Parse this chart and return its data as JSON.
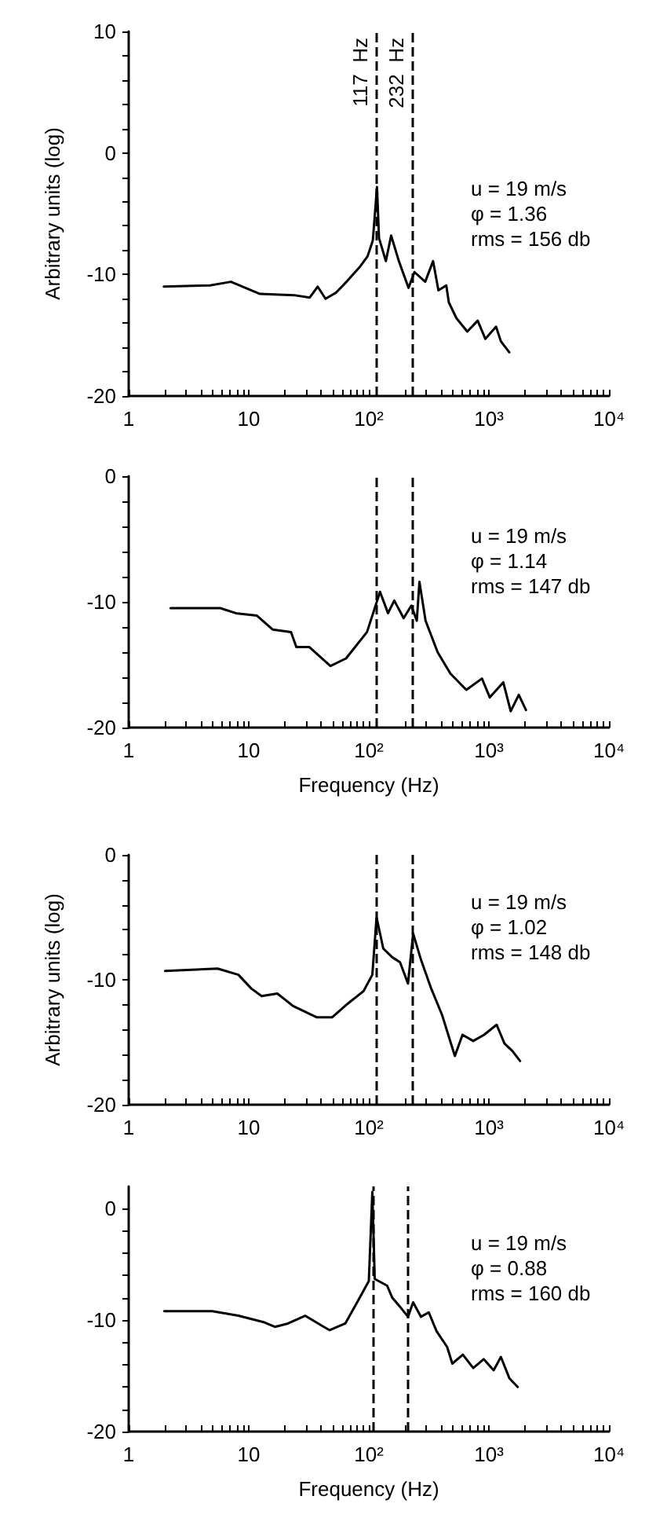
{
  "chart_data": [
    {
      "type": "line",
      "ylabel": "Arbitrary units (log)",
      "log": "x",
      "xlim": [
        1,
        10000
      ],
      "ylim": [
        -20,
        10
      ],
      "xticks": [
        {
          "value": 1,
          "label": "1"
        },
        {
          "value": 2,
          "label": null
        },
        {
          "value": 3,
          "label": null
        },
        {
          "value": 4,
          "label": null
        },
        {
          "value": 5,
          "label": null
        },
        {
          "value": 6,
          "label": null
        },
        {
          "value": 7,
          "label": null
        },
        {
          "value": 8,
          "label": null
        },
        {
          "value": 9,
          "label": null
        },
        {
          "value": 10,
          "label": "10"
        },
        {
          "value": 20,
          "label": null
        },
        {
          "value": 30,
          "label": null
        },
        {
          "value": 40,
          "label": null
        },
        {
          "value": 50,
          "label": null
        },
        {
          "value": 60,
          "label": null
        },
        {
          "value": 70,
          "label": null
        },
        {
          "value": 80,
          "label": null
        },
        {
          "value": 90,
          "label": null
        },
        {
          "value": 100,
          "label": "10²"
        },
        {
          "value": 200,
          "label": null
        },
        {
          "value": 300,
          "label": null
        },
        {
          "value": 400,
          "label": null
        },
        {
          "value": 500,
          "label": null
        },
        {
          "value": 600,
          "label": null
        },
        {
          "value": 700,
          "label": null
        },
        {
          "value": 800,
          "label": null
        },
        {
          "value": 900,
          "label": null
        },
        {
          "value": 1000,
          "label": "10³"
        },
        {
          "value": 2000,
          "label": null
        },
        {
          "value": 3000,
          "label": null
        },
        {
          "value": 4000,
          "label": null
        },
        {
          "value": 5000,
          "label": null
        },
        {
          "value": 6000,
          "label": null
        },
        {
          "value": 7000,
          "label": null
        },
        {
          "value": 8000,
          "label": null
        },
        {
          "value": 9000,
          "label": null
        },
        {
          "value": 10000,
          "label": "10⁴"
        }
      ],
      "yticks": [
        {
          "value": -20,
          "label": "-20"
        },
        {
          "value": -18,
          "label": null
        },
        {
          "value": -16,
          "label": null
        },
        {
          "value": -14,
          "label": null
        },
        {
          "value": -12,
          "label": null
        },
        {
          "value": -10,
          "label": "-10"
        },
        {
          "value": -8,
          "label": null
        },
        {
          "value": -6,
          "label": null
        },
        {
          "value": -4,
          "label": null
        },
        {
          "value": -2,
          "label": null
        },
        {
          "value": 0,
          "label": "0"
        },
        {
          "value": 2,
          "label": null
        },
        {
          "value": 4,
          "label": null
        },
        {
          "value": 6,
          "label": null
        },
        {
          "value": 8,
          "label": null
        },
        {
          "value": 10,
          "label": "10"
        }
      ],
      "grid": false,
      "series": [
        {
          "color": "#000000",
          "x": [
            1.96,
            4.76,
            7.1,
            12.4,
            23.8,
            32.2,
            37.5,
            43.6,
            53.3,
            65.2,
            83.8,
            97.7,
            108,
            117,
            121.6,
            138.7,
            153.5,
            178,
            214,
            240,
            295,
            343,
            380,
            442,
            464,
            537,
            661,
            807,
            935,
            1148,
            1259,
            1479
          ],
          "values": [
            -11.0,
            -10.9,
            -10.6,
            -11.6,
            -11.7,
            -11.9,
            -11.0,
            -12.0,
            -11.5,
            -10.6,
            -9.4,
            -8.5,
            -7.2,
            -2.8,
            -7.0,
            -8.9,
            -6.8,
            -8.9,
            -11.1,
            -9.8,
            -10.6,
            -8.9,
            -11.3,
            -10.9,
            -12.3,
            -13.6,
            -14.7,
            -13.8,
            -15.3,
            -14.3,
            -15.5,
            -16.4
          ]
        }
      ],
      "ref_lines": [
        {
          "axis": "x",
          "value": 117,
          "label": "117  Hz",
          "line_style": "dashed",
          "color": "#000000"
        },
        {
          "axis": "x",
          "value": 232,
          "label": "232  Hz",
          "line_style": "dashed",
          "color": "#000000"
        }
      ],
      "annotations": [
        "u = 19 m/s",
        "φ = 1.36",
        "rms = 156 db"
      ]
    },
    {
      "type": "line",
      "xlabel": "Frequency (Hz)",
      "log": "x",
      "xlim": [
        1,
        10000
      ],
      "ylim": [
        -20,
        0
      ],
      "xticks": [
        {
          "value": 1,
          "label": "1"
        },
        {
          "value": 2,
          "label": null
        },
        {
          "value": 3,
          "label": null
        },
        {
          "value": 4,
          "label": null
        },
        {
          "value": 5,
          "label": null
        },
        {
          "value": 6,
          "label": null
        },
        {
          "value": 7,
          "label": null
        },
        {
          "value": 8,
          "label": null
        },
        {
          "value": 9,
          "label": null
        },
        {
          "value": 10,
          "label": "10"
        },
        {
          "value": 20,
          "label": null
        },
        {
          "value": 30,
          "label": null
        },
        {
          "value": 40,
          "label": null
        },
        {
          "value": 50,
          "label": null
        },
        {
          "value": 60,
          "label": null
        },
        {
          "value": 70,
          "label": null
        },
        {
          "value": 80,
          "label": null
        },
        {
          "value": 90,
          "label": null
        },
        {
          "value": 100,
          "label": "10²"
        },
        {
          "value": 200,
          "label": null
        },
        {
          "value": 300,
          "label": null
        },
        {
          "value": 400,
          "label": null
        },
        {
          "value": 500,
          "label": null
        },
        {
          "value": 600,
          "label": null
        },
        {
          "value": 700,
          "label": null
        },
        {
          "value": 800,
          "label": null
        },
        {
          "value": 900,
          "label": null
        },
        {
          "value": 1000,
          "label": "10³"
        },
        {
          "value": 2000,
          "label": null
        },
        {
          "value": 3000,
          "label": null
        },
        {
          "value": 4000,
          "label": null
        },
        {
          "value": 5000,
          "label": null
        },
        {
          "value": 6000,
          "label": null
        },
        {
          "value": 7000,
          "label": null
        },
        {
          "value": 8000,
          "label": null
        },
        {
          "value": 9000,
          "label": null
        },
        {
          "value": 10000,
          "label": "10⁴"
        }
      ],
      "yticks": [
        {
          "value": -20,
          "label": "-20"
        },
        {
          "value": -18,
          "label": null
        },
        {
          "value": -16,
          "label": null
        },
        {
          "value": -14,
          "label": null
        },
        {
          "value": -12,
          "label": null
        },
        {
          "value": -10,
          "label": "-10"
        },
        {
          "value": -8,
          "label": null
        },
        {
          "value": -6,
          "label": null
        },
        {
          "value": -4,
          "label": null
        },
        {
          "value": -2,
          "label": null
        },
        {
          "value": 0,
          "label": "0"
        }
      ],
      "grid": false,
      "series": [
        {
          "color": "#000000",
          "x": [
            2.23,
            5.8,
            7.8,
            11.7,
            15.8,
            22.5,
            24.9,
            32,
            47.9,
            64.6,
            96.6,
            124,
            144.5,
            163,
            195,
            226,
            251,
            264,
            297,
            374,
            478,
            649,
            876,
            1018,
            1318,
            1520,
            1775,
            2036
          ],
          "values": [
            -10.5,
            -10.5,
            -10.9,
            -11.1,
            -12.2,
            -12.4,
            -13.6,
            -13.6,
            -15.1,
            -14.5,
            -12.4,
            -9.2,
            -10.9,
            -9.9,
            -11.3,
            -10.3,
            -11.5,
            -8.4,
            -11.5,
            -14.0,
            -15.7,
            -17.0,
            -16.1,
            -17.6,
            -16.4,
            -18.7,
            -17.4,
            -18.6
          ]
        }
      ],
      "ref_lines": [
        {
          "axis": "x",
          "value": 117,
          "line_style": "dashed",
          "color": "#000000"
        },
        {
          "axis": "x",
          "value": 232,
          "line_style": "dashed",
          "color": "#000000"
        }
      ],
      "annotations": [
        "u = 19 m/s",
        "φ = 1.14",
        "rms = 147 db"
      ]
    },
    {
      "type": "line",
      "ylabel": "Arbitrary units (log)",
      "log": "x",
      "xlim": [
        1,
        10000
      ],
      "ylim": [
        -20,
        0
      ],
      "xticks": [
        {
          "value": 1,
          "label": "1"
        },
        {
          "value": 2,
          "label": null
        },
        {
          "value": 3,
          "label": null
        },
        {
          "value": 4,
          "label": null
        },
        {
          "value": 5,
          "label": null
        },
        {
          "value": 6,
          "label": null
        },
        {
          "value": 7,
          "label": null
        },
        {
          "value": 8,
          "label": null
        },
        {
          "value": 9,
          "label": null
        },
        {
          "value": 10,
          "label": "10"
        },
        {
          "value": 20,
          "label": null
        },
        {
          "value": 30,
          "label": null
        },
        {
          "value": 40,
          "label": null
        },
        {
          "value": 50,
          "label": null
        },
        {
          "value": 60,
          "label": null
        },
        {
          "value": 70,
          "label": null
        },
        {
          "value": 80,
          "label": null
        },
        {
          "value": 90,
          "label": null
        },
        {
          "value": 100,
          "label": "10²"
        },
        {
          "value": 200,
          "label": null
        },
        {
          "value": 300,
          "label": null
        },
        {
          "value": 400,
          "label": null
        },
        {
          "value": 500,
          "label": null
        },
        {
          "value": 600,
          "label": null
        },
        {
          "value": 700,
          "label": null
        },
        {
          "value": 800,
          "label": null
        },
        {
          "value": 900,
          "label": null
        },
        {
          "value": 1000,
          "label": "10³"
        },
        {
          "value": 2000,
          "label": null
        },
        {
          "value": 3000,
          "label": null
        },
        {
          "value": 4000,
          "label": null
        },
        {
          "value": 5000,
          "label": null
        },
        {
          "value": 6000,
          "label": null
        },
        {
          "value": 7000,
          "label": null
        },
        {
          "value": 8000,
          "label": null
        },
        {
          "value": 9000,
          "label": null
        },
        {
          "value": 10000,
          "label": "10⁴"
        }
      ],
      "yticks": [
        {
          "value": -20,
          "label": "-20"
        },
        {
          "value": -18,
          "label": null
        },
        {
          "value": -16,
          "label": null
        },
        {
          "value": -14,
          "label": null
        },
        {
          "value": -12,
          "label": null
        },
        {
          "value": -10,
          "label": "-10"
        },
        {
          "value": -8,
          "label": null
        },
        {
          "value": -6,
          "label": null
        },
        {
          "value": -4,
          "label": null
        },
        {
          "value": -2,
          "label": null
        },
        {
          "value": 0,
          "label": "0"
        }
      ],
      "grid": false,
      "series": [
        {
          "color": "#000000",
          "x": [
            2.01,
            5.5,
            8.2,
            10.5,
            12.8,
            17.3,
            23.4,
            36.7,
            49.6,
            67,
            90.5,
            107,
            116,
            132,
            157,
            182,
            212,
            234,
            272,
            331,
            407,
            521,
            603,
            741,
            912,
            1161,
            1349,
            1570,
            1820
          ],
          "values": [
            -9.3,
            -9.1,
            -9.6,
            -10.7,
            -11.3,
            -11.1,
            -12.1,
            -13.0,
            -13.0,
            -11.9,
            -10.9,
            -9.6,
            -5.0,
            -7.5,
            -8.2,
            -8.6,
            -10.3,
            -6.3,
            -8.4,
            -10.7,
            -12.8,
            -16.1,
            -14.4,
            -14.9,
            -14.4,
            -13.6,
            -15.1,
            -15.7,
            -16.5
          ]
        }
      ],
      "ref_lines": [
        {
          "axis": "x",
          "value": 117,
          "line_style": "dashed",
          "color": "#000000"
        },
        {
          "axis": "x",
          "value": 232,
          "line_style": "dashed",
          "color": "#000000"
        }
      ],
      "annotations": [
        "u = 19 m/s",
        "φ = 1.02",
        "rms = 148 db"
      ]
    },
    {
      "type": "line",
      "xlabel": "Frequency (Hz)",
      "log": "x",
      "xlim": [
        1,
        10000
      ],
      "ylim": [
        -20,
        2
      ],
      "xticks": [
        {
          "value": 1,
          "label": "1"
        },
        {
          "value": 2,
          "label": null
        },
        {
          "value": 3,
          "label": null
        },
        {
          "value": 4,
          "label": null
        },
        {
          "value": 5,
          "label": null
        },
        {
          "value": 6,
          "label": null
        },
        {
          "value": 7,
          "label": null
        },
        {
          "value": 8,
          "label": null
        },
        {
          "value": 9,
          "label": null
        },
        {
          "value": 10,
          "label": "10"
        },
        {
          "value": 20,
          "label": null
        },
        {
          "value": 30,
          "label": null
        },
        {
          "value": 40,
          "label": null
        },
        {
          "value": 50,
          "label": null
        },
        {
          "value": 60,
          "label": null
        },
        {
          "value": 70,
          "label": null
        },
        {
          "value": 80,
          "label": null
        },
        {
          "value": 90,
          "label": null
        },
        {
          "value": 100,
          "label": "10²"
        },
        {
          "value": 200,
          "label": null
        },
        {
          "value": 300,
          "label": null
        },
        {
          "value": 400,
          "label": null
        },
        {
          "value": 500,
          "label": null
        },
        {
          "value": 600,
          "label": null
        },
        {
          "value": 700,
          "label": null
        },
        {
          "value": 800,
          "label": null
        },
        {
          "value": 900,
          "label": null
        },
        {
          "value": 1000,
          "label": "10³"
        },
        {
          "value": 2000,
          "label": null
        },
        {
          "value": 3000,
          "label": null
        },
        {
          "value": 4000,
          "label": null
        },
        {
          "value": 5000,
          "label": null
        },
        {
          "value": 6000,
          "label": null
        },
        {
          "value": 7000,
          "label": null
        },
        {
          "value": 8000,
          "label": null
        },
        {
          "value": 9000,
          "label": null
        },
        {
          "value": 10000,
          "label": "10⁴"
        }
      ],
      "yticks": [
        {
          "value": -20,
          "label": "-20"
        },
        {
          "value": -18,
          "label": null
        },
        {
          "value": -16,
          "label": null
        },
        {
          "value": -14,
          "label": null
        },
        {
          "value": -12,
          "label": null
        },
        {
          "value": -10,
          "label": "-10"
        },
        {
          "value": -8,
          "label": null
        },
        {
          "value": -6,
          "label": null
        },
        {
          "value": -4,
          "label": null
        },
        {
          "value": -2,
          "label": null
        },
        {
          "value": 0,
          "label": "0"
        }
      ],
      "grid": false,
      "series": [
        {
          "color": "#000000",
          "x": [
            1.98,
            4.96,
            8.2,
            13.5,
            16.5,
            21.2,
            29.5,
            40.6,
            47.2,
            63.7,
            81.8,
            100,
            107,
            112,
            142,
            157,
            182,
            212,
            234,
            272,
            316,
            367,
            449,
            496,
            607,
            741,
            905,
            1096,
            1259,
            1479,
            1738
          ],
          "values": [
            -9.2,
            -9.2,
            -9.6,
            -10.2,
            -10.6,
            -10.3,
            -9.6,
            -10.5,
            -10.9,
            -10.3,
            -8.2,
            -6.5,
            1.5,
            -6.3,
            -6.9,
            -8.0,
            -8.8,
            -9.7,
            -8.4,
            -9.7,
            -9.3,
            -11.0,
            -12.4,
            -13.9,
            -13.1,
            -14.3,
            -13.5,
            -14.5,
            -13.3,
            -15.2,
            -16.0
          ]
        }
      ],
      "ref_lines": [
        {
          "axis": "x",
          "value": 108,
          "line_style": "dashed",
          "color": "#000000"
        },
        {
          "axis": "x",
          "value": 213,
          "line_style": "dashed",
          "color": "#000000"
        }
      ],
      "annotations": [
        "u = 19 m/s",
        "φ = 0.88",
        "rms = 160 db"
      ]
    }
  ]
}
